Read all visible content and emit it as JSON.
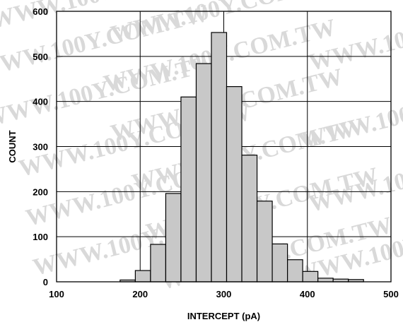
{
  "watermark": "WWW.100Y.COM.TW",
  "chart_data": {
    "type": "bar",
    "title": "",
    "xlabel": "INTERCEPT (pA)",
    "ylabel": "COUNT",
    "xlim": [
      100,
      500
    ],
    "ylim": [
      0,
      600
    ],
    "xticks": [
      100,
      200,
      300,
      400,
      500
    ],
    "yticks": [
      0,
      100,
      200,
      300,
      400,
      500,
      600
    ],
    "grid": true,
    "bin_width": 18.2,
    "bin_starts": [
      176,
      194.2,
      212.4,
      230.6,
      248.8,
      267,
      285.2,
      303.4,
      321.6,
      339.8,
      358,
      376.2,
      394.4,
      412.6,
      430.8,
      449
    ],
    "values": [
      4,
      25,
      83,
      196,
      410,
      484,
      553,
      433,
      281,
      179,
      84,
      49,
      23,
      8,
      6,
      5
    ],
    "bar_color": "#c8c8c8"
  }
}
